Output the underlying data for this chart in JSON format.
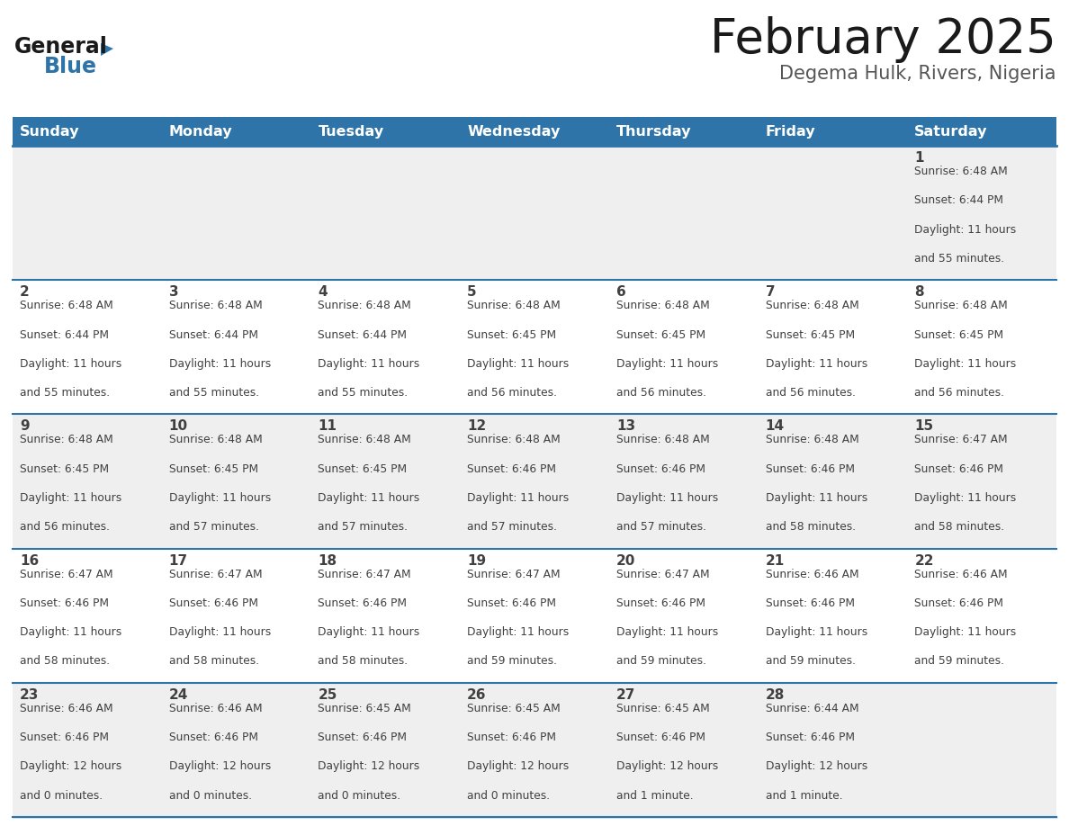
{
  "title": "February 2025",
  "subtitle": "Degema Hulk, Rivers, Nigeria",
  "days_of_week": [
    "Sunday",
    "Monday",
    "Tuesday",
    "Wednesday",
    "Thursday",
    "Friday",
    "Saturday"
  ],
  "header_bg": "#2E74A8",
  "header_text": "#FFFFFF",
  "cell_bg_odd": "#EFEFEF",
  "cell_bg_even": "#FFFFFF",
  "divider_color": "#2E74A8",
  "text_color": "#404040",
  "logo_black": "#1a1a1a",
  "logo_blue": "#2E74A8",
  "calendar_data": [
    [
      {
        "day": null,
        "sunrise": null,
        "sunset": null,
        "daylight_h": null,
        "daylight_m": null
      },
      {
        "day": null,
        "sunrise": null,
        "sunset": null,
        "daylight_h": null,
        "daylight_m": null
      },
      {
        "day": null,
        "sunrise": null,
        "sunset": null,
        "daylight_h": null,
        "daylight_m": null
      },
      {
        "day": null,
        "sunrise": null,
        "sunset": null,
        "daylight_h": null,
        "daylight_m": null
      },
      {
        "day": null,
        "sunrise": null,
        "sunset": null,
        "daylight_h": null,
        "daylight_m": null
      },
      {
        "day": null,
        "sunrise": null,
        "sunset": null,
        "daylight_h": null,
        "daylight_m": null
      },
      {
        "day": 1,
        "sunrise": "6:48 AM",
        "sunset": "6:44 PM",
        "daylight_h": "11 hours",
        "daylight_m": "and 55 minutes."
      }
    ],
    [
      {
        "day": 2,
        "sunrise": "6:48 AM",
        "sunset": "6:44 PM",
        "daylight_h": "11 hours",
        "daylight_m": "and 55 minutes."
      },
      {
        "day": 3,
        "sunrise": "6:48 AM",
        "sunset": "6:44 PM",
        "daylight_h": "11 hours",
        "daylight_m": "and 55 minutes."
      },
      {
        "day": 4,
        "sunrise": "6:48 AM",
        "sunset": "6:44 PM",
        "daylight_h": "11 hours",
        "daylight_m": "and 55 minutes."
      },
      {
        "day": 5,
        "sunrise": "6:48 AM",
        "sunset": "6:45 PM",
        "daylight_h": "11 hours",
        "daylight_m": "and 56 minutes."
      },
      {
        "day": 6,
        "sunrise": "6:48 AM",
        "sunset": "6:45 PM",
        "daylight_h": "11 hours",
        "daylight_m": "and 56 minutes."
      },
      {
        "day": 7,
        "sunrise": "6:48 AM",
        "sunset": "6:45 PM",
        "daylight_h": "11 hours",
        "daylight_m": "and 56 minutes."
      },
      {
        "day": 8,
        "sunrise": "6:48 AM",
        "sunset": "6:45 PM",
        "daylight_h": "11 hours",
        "daylight_m": "and 56 minutes."
      }
    ],
    [
      {
        "day": 9,
        "sunrise": "6:48 AM",
        "sunset": "6:45 PM",
        "daylight_h": "11 hours",
        "daylight_m": "and 56 minutes."
      },
      {
        "day": 10,
        "sunrise": "6:48 AM",
        "sunset": "6:45 PM",
        "daylight_h": "11 hours",
        "daylight_m": "and 57 minutes."
      },
      {
        "day": 11,
        "sunrise": "6:48 AM",
        "sunset": "6:45 PM",
        "daylight_h": "11 hours",
        "daylight_m": "and 57 minutes."
      },
      {
        "day": 12,
        "sunrise": "6:48 AM",
        "sunset": "6:46 PM",
        "daylight_h": "11 hours",
        "daylight_m": "and 57 minutes."
      },
      {
        "day": 13,
        "sunrise": "6:48 AM",
        "sunset": "6:46 PM",
        "daylight_h": "11 hours",
        "daylight_m": "and 57 minutes."
      },
      {
        "day": 14,
        "sunrise": "6:48 AM",
        "sunset": "6:46 PM",
        "daylight_h": "11 hours",
        "daylight_m": "and 58 minutes."
      },
      {
        "day": 15,
        "sunrise": "6:47 AM",
        "sunset": "6:46 PM",
        "daylight_h": "11 hours",
        "daylight_m": "and 58 minutes."
      }
    ],
    [
      {
        "day": 16,
        "sunrise": "6:47 AM",
        "sunset": "6:46 PM",
        "daylight_h": "11 hours",
        "daylight_m": "and 58 minutes."
      },
      {
        "day": 17,
        "sunrise": "6:47 AM",
        "sunset": "6:46 PM",
        "daylight_h": "11 hours",
        "daylight_m": "and 58 minutes."
      },
      {
        "day": 18,
        "sunrise": "6:47 AM",
        "sunset": "6:46 PM",
        "daylight_h": "11 hours",
        "daylight_m": "and 58 minutes."
      },
      {
        "day": 19,
        "sunrise": "6:47 AM",
        "sunset": "6:46 PM",
        "daylight_h": "11 hours",
        "daylight_m": "and 59 minutes."
      },
      {
        "day": 20,
        "sunrise": "6:47 AM",
        "sunset": "6:46 PM",
        "daylight_h": "11 hours",
        "daylight_m": "and 59 minutes."
      },
      {
        "day": 21,
        "sunrise": "6:46 AM",
        "sunset": "6:46 PM",
        "daylight_h": "11 hours",
        "daylight_m": "and 59 minutes."
      },
      {
        "day": 22,
        "sunrise": "6:46 AM",
        "sunset": "6:46 PM",
        "daylight_h": "11 hours",
        "daylight_m": "and 59 minutes."
      }
    ],
    [
      {
        "day": 23,
        "sunrise": "6:46 AM",
        "sunset": "6:46 PM",
        "daylight_h": "12 hours",
        "daylight_m": "and 0 minutes."
      },
      {
        "day": 24,
        "sunrise": "6:46 AM",
        "sunset": "6:46 PM",
        "daylight_h": "12 hours",
        "daylight_m": "and 0 minutes."
      },
      {
        "day": 25,
        "sunrise": "6:45 AM",
        "sunset": "6:46 PM",
        "daylight_h": "12 hours",
        "daylight_m": "and 0 minutes."
      },
      {
        "day": 26,
        "sunrise": "6:45 AM",
        "sunset": "6:46 PM",
        "daylight_h": "12 hours",
        "daylight_m": "and 0 minutes."
      },
      {
        "day": 27,
        "sunrise": "6:45 AM",
        "sunset": "6:46 PM",
        "daylight_h": "12 hours",
        "daylight_m": "and 1 minute."
      },
      {
        "day": 28,
        "sunrise": "6:44 AM",
        "sunset": "6:46 PM",
        "daylight_h": "12 hours",
        "daylight_m": "and 1 minute."
      },
      {
        "day": null,
        "sunrise": null,
        "sunset": null,
        "daylight_h": null,
        "daylight_m": null
      }
    ]
  ]
}
